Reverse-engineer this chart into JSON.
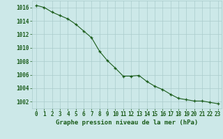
{
  "x": [
    0,
    1,
    2,
    3,
    4,
    5,
    6,
    7,
    8,
    9,
    10,
    11,
    12,
    13,
    14,
    15,
    16,
    17,
    18,
    19,
    20,
    21,
    22,
    23
  ],
  "y": [
    1016.3,
    1016.0,
    1015.3,
    1014.8,
    1014.3,
    1013.5,
    1012.5,
    1011.5,
    1009.5,
    1008.1,
    1007.0,
    1005.8,
    1005.8,
    1005.9,
    1005.0,
    1004.3,
    1003.8,
    1003.1,
    1002.5,
    1002.3,
    1002.1,
    1002.1,
    1001.9,
    1001.7
  ],
  "line_color": "#1a5c1a",
  "marker": "+",
  "marker_color": "#1a5c1a",
  "background_color": "#cce8e8",
  "grid_color": "#aacccc",
  "xlabel": "Graphe pression niveau de la mer (hPa)",
  "xlabel_color": "#1a5c1a",
  "tick_color": "#1a5c1a",
  "ylim": [
    1001,
    1017
  ],
  "xlim": [
    -0.5,
    23.5
  ],
  "yticks": [
    1002,
    1004,
    1006,
    1008,
    1010,
    1012,
    1014,
    1016
  ],
  "xticks": [
    0,
    1,
    2,
    3,
    4,
    5,
    6,
    7,
    8,
    9,
    10,
    11,
    12,
    13,
    14,
    15,
    16,
    17,
    18,
    19,
    20,
    21,
    22,
    23
  ],
  "xtick_labels": [
    "0",
    "1",
    "2",
    "3",
    "4",
    "5",
    "6",
    "7",
    "8",
    "9",
    "10",
    "11",
    "12",
    "13",
    "14",
    "15",
    "16",
    "17",
    "18",
    "19",
    "20",
    "21",
    "22",
    "23"
  ],
  "xlabel_fontsize": 6.5,
  "tick_fontsize": 5.5
}
